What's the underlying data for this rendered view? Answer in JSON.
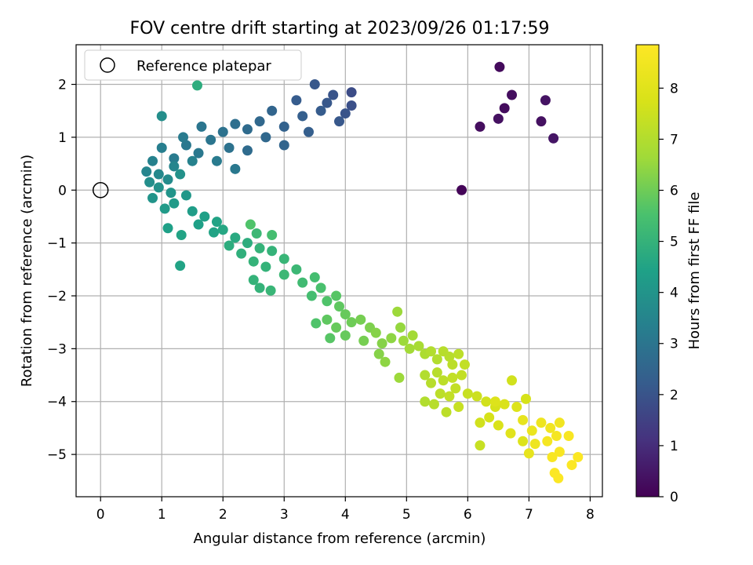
{
  "chart_data": {
    "type": "scatter",
    "title": "FOV centre drift starting at 2023/09/26 01:17:59",
    "xlabel": "Angular distance from reference (arcmin)",
    "ylabel": "Rotation from reference (arcmin)",
    "xlim": [
      -0.4,
      8.2
    ],
    "ylim": [
      -5.8,
      2.75
    ],
    "xticks": [
      0,
      1,
      2,
      3,
      4,
      5,
      6,
      7,
      8
    ],
    "yticks": [
      -5,
      -4,
      -3,
      -2,
      -1,
      0,
      1,
      2
    ],
    "grid": true,
    "legend": {
      "placement": "upper-left",
      "entries": [
        "Reference platepar"
      ]
    },
    "reference_point": {
      "x": 0,
      "y": 0,
      "label": "Reference platepar"
    },
    "colorbar": {
      "label": "Hours from first FF file",
      "range": [
        0,
        8.85
      ],
      "ticks": [
        0,
        1,
        2,
        3,
        4,
        5,
        6,
        7,
        8
      ],
      "colormap": "viridis"
    },
    "series": [
      {
        "points": [
          [
            5.9,
            0.0,
            0.1
          ],
          [
            6.52,
            2.33,
            0.2
          ],
          [
            6.2,
            1.2,
            0.3
          ],
          [
            6.5,
            1.35,
            0.35
          ],
          [
            6.6,
            1.55,
            0.25
          ],
          [
            6.72,
            1.8,
            0.3
          ],
          [
            7.27,
            1.7,
            0.4
          ],
          [
            7.2,
            1.3,
            0.35
          ],
          [
            7.4,
            0.98,
            0.45
          ],
          [
            3.5,
            2.0,
            2.1
          ],
          [
            3.2,
            1.7,
            2.2
          ],
          [
            3.8,
            1.8,
            2.0
          ],
          [
            4.1,
            1.85,
            1.8
          ],
          [
            4.1,
            1.6,
            1.9
          ],
          [
            3.6,
            1.5,
            2.2
          ],
          [
            3.3,
            1.4,
            2.3
          ],
          [
            2.8,
            1.5,
            2.5
          ],
          [
            3.0,
            1.2,
            2.4
          ],
          [
            3.4,
            1.1,
            2.3
          ],
          [
            3.9,
            1.3,
            2.1
          ],
          [
            4.0,
            1.45,
            2.0
          ],
          [
            3.7,
            1.65,
            2.1
          ],
          [
            2.6,
            1.3,
            2.6
          ],
          [
            2.4,
            1.15,
            2.7
          ],
          [
            2.2,
            1.25,
            2.8
          ],
          [
            2.0,
            1.1,
            2.9
          ],
          [
            2.7,
            1.0,
            2.6
          ],
          [
            3.0,
            0.85,
            2.5
          ],
          [
            2.4,
            0.75,
            2.7
          ],
          [
            2.1,
            0.8,
            2.9
          ],
          [
            1.8,
            0.95,
            3.0
          ],
          [
            1.6,
            0.7,
            3.1
          ],
          [
            1.4,
            0.85,
            3.1
          ],
          [
            1.2,
            0.6,
            3.2
          ],
          [
            1.0,
            0.8,
            3.3
          ],
          [
            0.85,
            0.55,
            3.4
          ],
          [
            0.75,
            0.35,
            3.5
          ],
          [
            0.95,
            0.3,
            3.6
          ],
          [
            1.2,
            0.45,
            3.5
          ],
          [
            1.5,
            0.55,
            3.4
          ],
          [
            1.9,
            0.55,
            3.2
          ],
          [
            2.2,
            0.4,
            3.1
          ],
          [
            1.65,
            1.2,
            3.0
          ],
          [
            1.35,
            1.0,
            3.2
          ],
          [
            1.1,
            0.2,
            3.7
          ],
          [
            0.8,
            0.15,
            3.8
          ],
          [
            0.95,
            0.05,
            3.9
          ],
          [
            1.15,
            -0.05,
            4.0
          ],
          [
            0.85,
            -0.15,
            4.0
          ],
          [
            1.0,
            1.4,
            3.8
          ],
          [
            1.58,
            1.98,
            4.8
          ],
          [
            1.3,
            0.3,
            3.9
          ],
          [
            1.4,
            -0.1,
            4.1
          ],
          [
            1.2,
            -0.25,
            4.2
          ],
          [
            1.05,
            -0.35,
            4.2
          ],
          [
            1.1,
            -0.72,
            4.4
          ],
          [
            1.32,
            -0.85,
            4.5
          ],
          [
            1.3,
            -1.43,
            4.5
          ],
          [
            1.5,
            -0.4,
            4.3
          ],
          [
            1.7,
            -0.5,
            4.4
          ],
          [
            1.9,
            -0.6,
            4.5
          ],
          [
            1.6,
            -0.65,
            4.4
          ],
          [
            1.85,
            -0.8,
            4.5
          ],
          [
            2.0,
            -0.75,
            4.6
          ],
          [
            2.2,
            -0.9,
            4.7
          ],
          [
            2.1,
            -1.05,
            4.8
          ],
          [
            2.4,
            -1.0,
            4.8
          ],
          [
            2.3,
            -1.2,
            4.9
          ],
          [
            2.6,
            -1.1,
            5.0
          ],
          [
            2.8,
            -1.15,
            5.0
          ],
          [
            2.45,
            -0.65,
            5.6
          ],
          [
            2.55,
            -0.82,
            5.2
          ],
          [
            2.8,
            -0.85,
            5.4
          ],
          [
            2.5,
            -1.35,
            5.0
          ],
          [
            2.7,
            -1.45,
            5.0
          ],
          [
            3.0,
            -1.3,
            5.1
          ],
          [
            3.2,
            -1.5,
            5.2
          ],
          [
            3.0,
            -1.6,
            5.2
          ],
          [
            2.5,
            -1.7,
            5.0
          ],
          [
            2.6,
            -1.85,
            5.0
          ],
          [
            2.78,
            -1.9,
            5.1
          ],
          [
            3.3,
            -1.75,
            5.3
          ],
          [
            3.5,
            -1.65,
            5.4
          ],
          [
            3.6,
            -1.85,
            5.5
          ],
          [
            3.45,
            -2.0,
            5.4
          ],
          [
            3.7,
            -2.1,
            5.6
          ],
          [
            3.85,
            -2.0,
            5.7
          ],
          [
            3.9,
            -2.2,
            5.8
          ],
          [
            3.7,
            -2.45,
            5.8
          ],
          [
            4.0,
            -2.35,
            5.9
          ],
          [
            3.85,
            -2.6,
            5.9
          ],
          [
            4.1,
            -2.5,
            6.0
          ],
          [
            4.25,
            -2.45,
            6.1
          ],
          [
            4.4,
            -2.6,
            6.2
          ],
          [
            3.52,
            -2.52,
            5.6
          ],
          [
            3.75,
            -2.8,
            5.7
          ],
          [
            4.0,
            -2.75,
            5.9
          ],
          [
            4.3,
            -2.85,
            6.1
          ],
          [
            4.5,
            -2.7,
            6.3
          ],
          [
            4.6,
            -2.9,
            6.3
          ],
          [
            4.75,
            -2.8,
            6.4
          ],
          [
            4.85,
            -2.3,
            6.6
          ],
          [
            4.9,
            -2.6,
            6.5
          ],
          [
            4.95,
            -2.85,
            6.6
          ],
          [
            5.1,
            -2.75,
            6.7
          ],
          [
            5.05,
            -3.0,
            6.7
          ],
          [
            5.2,
            -2.95,
            6.8
          ],
          [
            4.55,
            -3.1,
            6.3
          ],
          [
            4.65,
            -3.25,
            6.4
          ],
          [
            4.88,
            -3.55,
            6.6
          ],
          [
            5.3,
            -3.1,
            6.9
          ],
          [
            5.4,
            -3.05,
            7.0
          ],
          [
            5.5,
            -3.2,
            7.0
          ],
          [
            5.6,
            -3.05,
            7.1
          ],
          [
            5.7,
            -3.15,
            7.1
          ],
          [
            5.75,
            -3.3,
            7.2
          ],
          [
            5.85,
            -3.1,
            7.2
          ],
          [
            5.5,
            -3.45,
            7.1
          ],
          [
            5.3,
            -3.5,
            7.0
          ],
          [
            5.4,
            -3.65,
            7.1
          ],
          [
            5.6,
            -3.6,
            7.2
          ],
          [
            5.75,
            -3.55,
            7.3
          ],
          [
            5.9,
            -3.5,
            7.3
          ],
          [
            5.95,
            -3.3,
            7.3
          ],
          [
            5.55,
            -3.85,
            7.2
          ],
          [
            5.7,
            -3.9,
            7.3
          ],
          [
            5.8,
            -3.75,
            7.3
          ],
          [
            5.3,
            -4.0,
            7.0
          ],
          [
            5.45,
            -4.05,
            7.1
          ],
          [
            5.65,
            -4.2,
            7.2
          ],
          [
            5.85,
            -4.1,
            7.4
          ],
          [
            6.0,
            -3.85,
            7.4
          ],
          [
            6.15,
            -3.9,
            7.5
          ],
          [
            6.3,
            -4.0,
            7.6
          ],
          [
            6.45,
            -4.1,
            7.7
          ],
          [
            6.6,
            -4.05,
            7.8
          ],
          [
            6.72,
            -3.6,
            7.6
          ],
          [
            6.8,
            -4.1,
            7.9
          ],
          [
            6.95,
            -3.95,
            7.7
          ],
          [
            6.35,
            -4.3,
            7.7
          ],
          [
            6.5,
            -4.45,
            7.8
          ],
          [
            6.2,
            -4.4,
            7.6
          ],
          [
            6.2,
            -4.83,
            7.4
          ],
          [
            6.7,
            -4.6,
            8.0
          ],
          [
            6.9,
            -4.35,
            8.2
          ],
          [
            7.05,
            -4.55,
            8.3
          ],
          [
            7.2,
            -4.4,
            8.4
          ],
          [
            7.35,
            -4.5,
            8.5
          ],
          [
            7.45,
            -4.65,
            8.6
          ],
          [
            7.5,
            -4.4,
            8.5
          ],
          [
            7.1,
            -4.8,
            8.4
          ],
          [
            7.3,
            -4.75,
            8.6
          ],
          [
            7.5,
            -4.95,
            8.7
          ],
          [
            7.65,
            -4.65,
            8.7
          ],
          [
            7.8,
            -5.05,
            8.8
          ],
          [
            7.38,
            -5.05,
            8.7
          ],
          [
            7.48,
            -5.45,
            8.8
          ],
          [
            7.7,
            -5.2,
            8.8
          ],
          [
            7.42,
            -5.35,
            8.8
          ],
          [
            6.9,
            -4.75,
            7.9
          ],
          [
            7.0,
            -4.98,
            8.2
          ],
          [
            6.45,
            -4.0,
            7.9
          ]
        ]
      }
    ]
  }
}
